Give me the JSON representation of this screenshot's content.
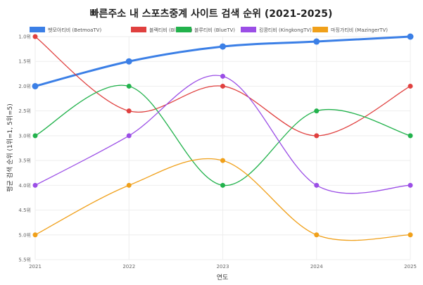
{
  "chart_data": {
    "type": "line",
    "title": "빠른주소 내 스포츠중계 사이트 검색 순위 (2021-2025)",
    "xlabel": "연도",
    "ylabel": "평균 검색 순위 (1위=1, 5위=5)",
    "x": [
      "2021",
      "2022",
      "2023",
      "2024",
      "2025"
    ],
    "ylim": [
      1.0,
      5.5
    ],
    "y_reversed": true,
    "y_ticks": [
      "1.0위",
      "1.5위",
      "2.0위",
      "2.5위",
      "3.0위",
      "3.5위",
      "4.0위",
      "4.5위",
      "5.0위",
      "5.5위"
    ],
    "grid": true,
    "legend": "top",
    "smooth": true,
    "series": [
      {
        "name": "벳모아티비 (BetmoaTV)",
        "color": "#3b7fe6",
        "values": [
          2.0,
          1.5,
          1.2,
          1.1,
          1.0
        ]
      },
      {
        "name": "블랙티비 (BlackTV)",
        "color": "#e0403f",
        "values": [
          1.0,
          2.5,
          2.0,
          3.0,
          2.0
        ]
      },
      {
        "name": "블루티비 (BlueTV)",
        "color": "#22b24c",
        "values": [
          3.0,
          2.0,
          4.0,
          2.5,
          3.0
        ]
      },
      {
        "name": "킹콩티비 (KingkongTV)",
        "color": "#9b4ee6",
        "values": [
          4.0,
          3.0,
          1.8,
          4.0,
          4.0
        ]
      },
      {
        "name": "마징가티비 (MazingerTV)",
        "color": "#f0a01a",
        "values": [
          5.0,
          4.0,
          3.5,
          5.0,
          5.0
        ]
      }
    ]
  }
}
